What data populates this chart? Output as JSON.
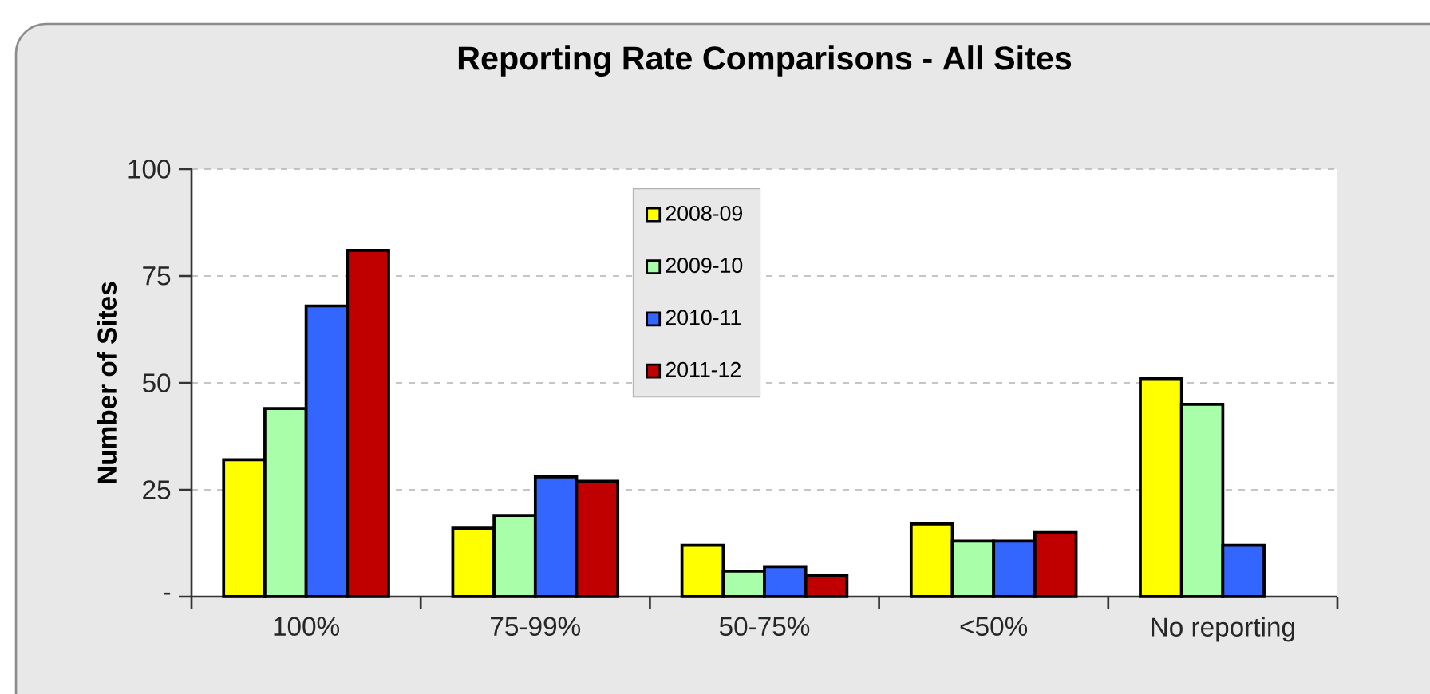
{
  "chart_data": {
    "type": "bar",
    "title": "Reporting Rate Comparisons - All Sites",
    "ylabel": "Number of Sites",
    "categories": [
      "100%",
      "75-99%",
      "50-75%",
      "<50%",
      "No reporting"
    ],
    "series": [
      {
        "name": "2008-09",
        "color": "#ffff00",
        "values": [
          32,
          16,
          12,
          17,
          51
        ]
      },
      {
        "name": "2009-10",
        "color": "#a9ffa9",
        "values": [
          44,
          19,
          6,
          13,
          45
        ]
      },
      {
        "name": "2010-11",
        "color": "#3366ff",
        "values": [
          68,
          28,
          7,
          13,
          12
        ]
      },
      {
        "name": "2011-12",
        "color": "#c00000",
        "values": [
          81,
          27,
          5,
          15,
          null
        ]
      }
    ],
    "ylim": [
      0,
      100
    ],
    "yticks": [
      {
        "value": 0,
        "label": "-"
      },
      25,
      50,
      75,
      100
    ],
    "grid": "y",
    "legend": "top"
  }
}
